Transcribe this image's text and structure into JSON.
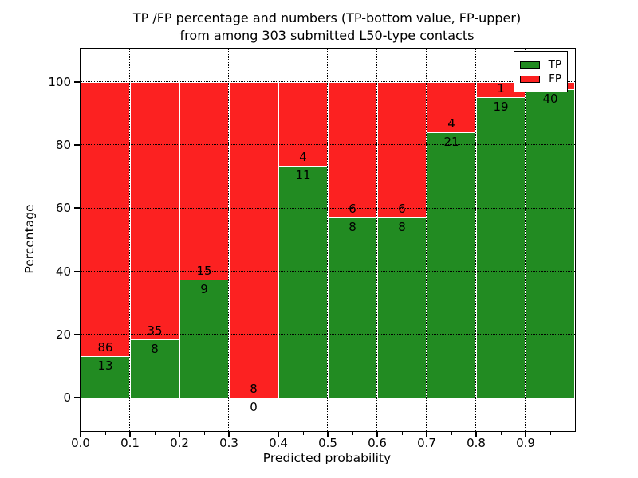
{
  "chart_data": {
    "type": "bar",
    "stacked": true,
    "title_lines": [
      "TP /FP percentage and numbers (TP-bottom value, FP-upper)",
      "from among 303 submitted L50-type contacts"
    ],
    "total_contacts": 303,
    "xlabel": "Predicted probability",
    "ylabel": "Percentage",
    "xlim": [
      0.0,
      1.0
    ],
    "ylim": [
      -10.5,
      110.5
    ],
    "bin_width": 0.1,
    "x_tick_labels": [
      "0.0",
      "0.1",
      "0.2",
      "0.3",
      "0.4",
      "0.5",
      "0.6",
      "0.7",
      "0.8",
      "0.9"
    ],
    "y_ticks": [
      0,
      20,
      40,
      60,
      80,
      100
    ],
    "grid": "dotted",
    "categories": [
      "0.0-0.1",
      "0.1-0.2",
      "0.2-0.3",
      "0.3-0.4",
      "0.4-0.5",
      "0.5-0.6",
      "0.6-0.7",
      "0.7-0.8",
      "0.8-0.9",
      "0.9-1.0"
    ],
    "series": [
      {
        "name": "TP",
        "stack_position": "bottom",
        "color": "#228b22",
        "counts": [
          13,
          8,
          9,
          0,
          11,
          8,
          8,
          21,
          19,
          40
        ]
      },
      {
        "name": "FP",
        "stack_position": "top",
        "color": "#fc2121",
        "counts": [
          86,
          35,
          15,
          8,
          4,
          6,
          6,
          4,
          1,
          1
        ]
      }
    ],
    "bar_value_labels": [
      {
        "tp": "13",
        "fp": "86"
      },
      {
        "tp": "8",
        "fp": "35"
      },
      {
        "tp": "9",
        "fp": "15"
      },
      {
        "tp": "0",
        "fp": "8"
      },
      {
        "tp": "11",
        "fp": "4"
      },
      {
        "tp": "8",
        "fp": "6"
      },
      {
        "tp": "8",
        "fp": "6"
      },
      {
        "tp": "21",
        "fp": "4"
      },
      {
        "tp": "19",
        "fp": "1"
      },
      {
        "tp": "40",
        "fp": "1"
      }
    ],
    "legend": {
      "position": "upper right",
      "entries": [
        {
          "label": "TP",
          "color": "#228b22"
        },
        {
          "label": "FP",
          "color": "#fc2121"
        }
      ]
    },
    "colors": {
      "axes": "#000000",
      "background": "#ffffff",
      "grid": "#000000"
    }
  }
}
